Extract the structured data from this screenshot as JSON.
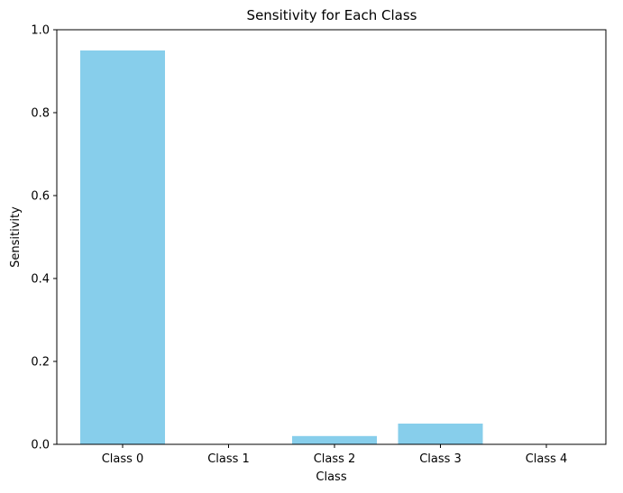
{
  "chart_data": {
    "type": "bar",
    "title": "Sensitivity for Each Class",
    "xlabel": "Class",
    "ylabel": "Sensitivity",
    "categories": [
      "Class 0",
      "Class 1",
      "Class 2",
      "Class 3",
      "Class 4"
    ],
    "values": [
      0.95,
      0.0,
      0.02,
      0.05,
      0.0
    ],
    "ylim": [
      0,
      1.0
    ],
    "yticks": [
      0.0,
      0.2,
      0.4,
      0.6,
      0.8,
      1.0
    ],
    "ytick_labels": [
      "0.0",
      "0.2",
      "0.4",
      "0.6",
      "0.8",
      "1.0"
    ],
    "grid": false,
    "bar_color": "#87ceeb"
  }
}
